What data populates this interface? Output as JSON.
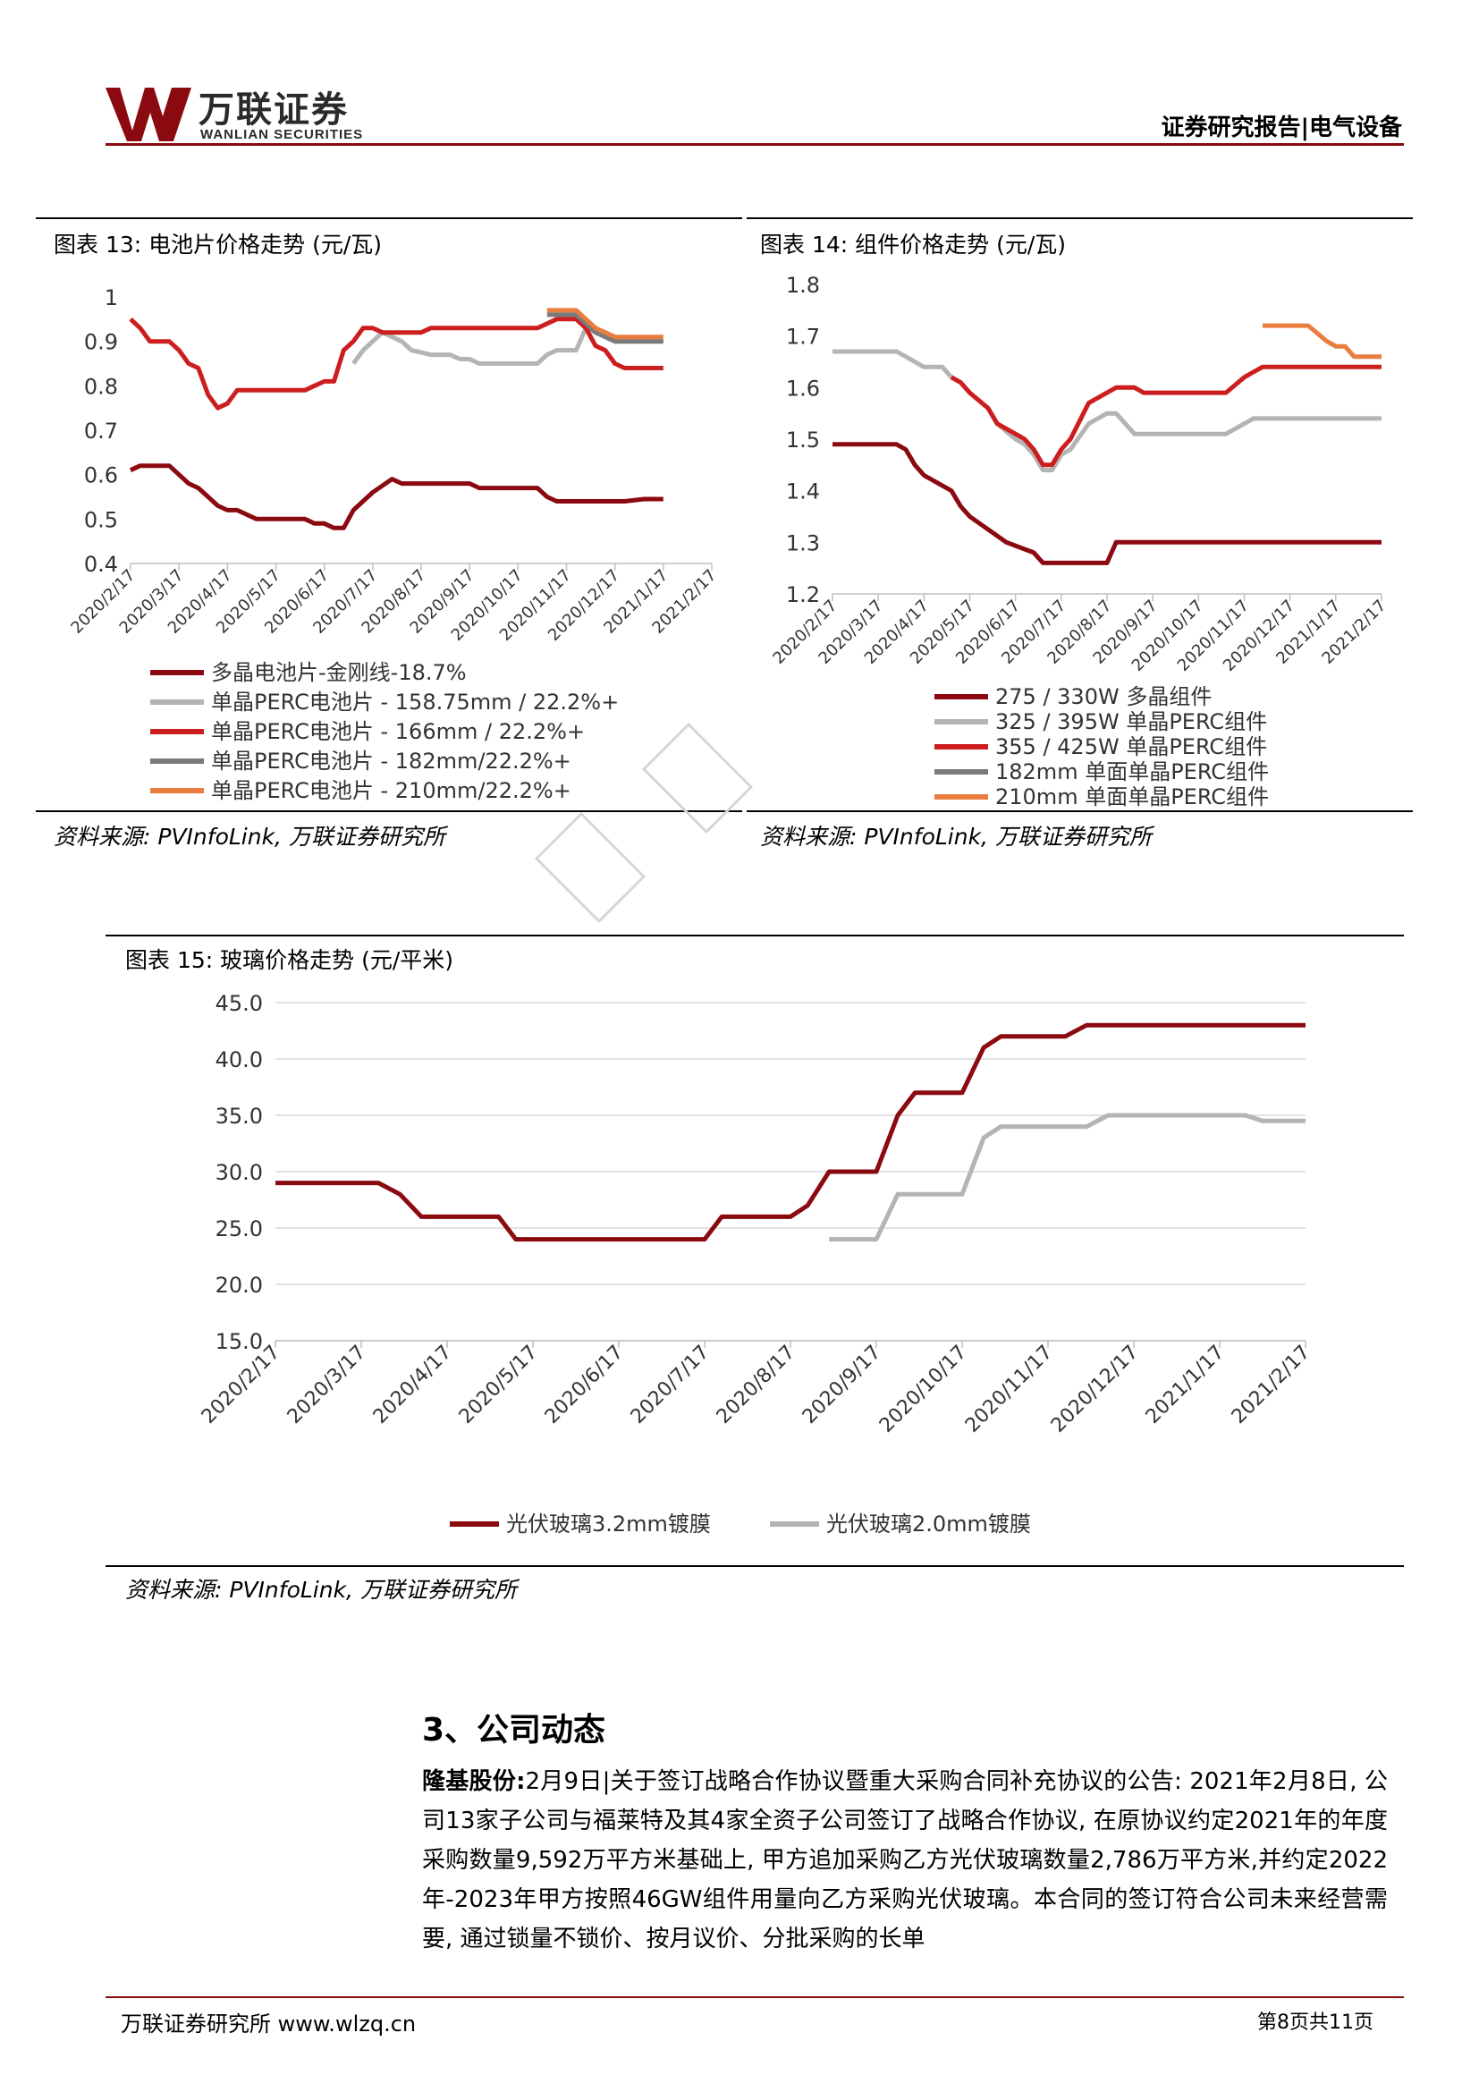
{
  "header": {
    "logo_cn": "万联证券",
    "logo_en": "WANLIAN SECURITIES",
    "report_type": "证券研究报告|电气设备",
    "brand_color": "#8b0a10"
  },
  "figures": {
    "f13": {
      "title": "图表 13: 电池片价格走势 (元/瓦)",
      "source": "资料来源: PVInfoLink, 万联证券研究所"
    },
    "f14": {
      "title": "图表 14: 组件价格走势 (元/瓦)",
      "source": "资料来源: PVInfoLink, 万联证券研究所"
    },
    "f15": {
      "title": "图表 15: 玻璃价格走势 (元/平米)",
      "source": "资料来源: PVInfoLink, 万联证券研究所"
    }
  },
  "chart_data": [
    {
      "type": "line",
      "x": [
        "2020/2/17",
        "2020/3/17",
        "2020/4/17",
        "2020/5/17",
        "2020/6/17",
        "2020/7/17",
        "2020/8/17",
        "2020/9/17",
        "2020/10/17",
        "2020/11/17",
        "2020/12/17",
        "2021/1/17",
        "2021/2/17"
      ],
      "ylim": [
        0.4,
        1.0
      ],
      "yticks": [
        "0.4",
        "0.5",
        "0.6",
        "0.7",
        "0.8",
        "0.9",
        "1"
      ],
      "series": [
        {
          "name": "多晶电池片-金刚线-18.7%",
          "color": "#8b0a10",
          "points": [
            [
              0,
              0.61
            ],
            [
              0.2,
              0.62
            ],
            [
              0.8,
              0.62
            ],
            [
              1.0,
              0.6
            ],
            [
              1.2,
              0.58
            ],
            [
              1.4,
              0.57
            ],
            [
              1.6,
              0.55
            ],
            [
              1.8,
              0.53
            ],
            [
              2.0,
              0.52
            ],
            [
              2.2,
              0.52
            ],
            [
              2.6,
              0.5
            ],
            [
              3.0,
              0.5
            ],
            [
              3.6,
              0.5
            ],
            [
              3.8,
              0.49
            ],
            [
              4.0,
              0.49
            ],
            [
              4.2,
              0.48
            ],
            [
              4.4,
              0.48
            ],
            [
              4.6,
              0.52
            ],
            [
              5.0,
              0.56
            ],
            [
              5.4,
              0.59
            ],
            [
              5.6,
              0.58
            ],
            [
              7.0,
              0.58
            ],
            [
              7.2,
              0.57
            ],
            [
              8.4,
              0.57
            ],
            [
              8.6,
              0.55
            ],
            [
              8.8,
              0.54
            ],
            [
              10.2,
              0.54
            ],
            [
              10.6,
              0.545
            ],
            [
              11,
              0.545
            ]
          ]
        },
        {
          "name": "单晶PERC电池片 - 158.75mm / 22.2%+",
          "color": "#b4b4b4",
          "points": [
            [
              4.6,
              0.85
            ],
            [
              4.8,
              0.88
            ],
            [
              5.2,
              0.92
            ],
            [
              5.6,
              0.9
            ],
            [
              5.8,
              0.88
            ],
            [
              6.2,
              0.87
            ],
            [
              6.6,
              0.87
            ],
            [
              6.8,
              0.86
            ],
            [
              7.0,
              0.86
            ],
            [
              7.2,
              0.85
            ],
            [
              8.4,
              0.85
            ],
            [
              8.6,
              0.87
            ],
            [
              8.8,
              0.88
            ],
            [
              9.2,
              0.88
            ],
            [
              9.4,
              0.93
            ],
            [
              9.6,
              0.92
            ],
            [
              10,
              0.9
            ],
            [
              11,
              0.9
            ]
          ]
        },
        {
          "name": "单晶PERC电池片 - 166mm / 22.2%+",
          "color": "#cc1e1e",
          "points": [
            [
              0,
              0.95
            ],
            [
              0.2,
              0.93
            ],
            [
              0.4,
              0.9
            ],
            [
              0.8,
              0.9
            ],
            [
              1.0,
              0.88
            ],
            [
              1.2,
              0.85
            ],
            [
              1.4,
              0.84
            ],
            [
              1.6,
              0.78
            ],
            [
              1.8,
              0.75
            ],
            [
              2.0,
              0.76
            ],
            [
              2.2,
              0.79
            ],
            [
              3.6,
              0.79
            ],
            [
              3.8,
              0.8
            ],
            [
              4.0,
              0.81
            ],
            [
              4.2,
              0.81
            ],
            [
              4.4,
              0.88
            ],
            [
              4.6,
              0.9
            ],
            [
              4.8,
              0.93
            ],
            [
              5.0,
              0.93
            ],
            [
              5.2,
              0.92
            ],
            [
              6.0,
              0.92
            ],
            [
              6.2,
              0.93
            ],
            [
              8.4,
              0.93
            ],
            [
              8.8,
              0.95
            ],
            [
              9.2,
              0.95
            ],
            [
              9.4,
              0.93
            ],
            [
              9.6,
              0.89
            ],
            [
              9.8,
              0.88
            ],
            [
              10.0,
              0.85
            ],
            [
              10.2,
              0.84
            ],
            [
              11,
              0.84
            ]
          ]
        },
        {
          "name": "单晶PERC电池片 - 182mm/22.2%+",
          "color": "#7a7a7a",
          "points": [
            [
              8.6,
              0.96
            ],
            [
              9.2,
              0.96
            ],
            [
              9.4,
              0.94
            ],
            [
              9.6,
              0.92
            ],
            [
              10,
              0.9
            ],
            [
              11,
              0.9
            ]
          ]
        },
        {
          "name": "单晶PERC电池片 - 210mm/22.2%+",
          "color": "#e87d3e",
          "points": [
            [
              8.6,
              0.97
            ],
            [
              9.2,
              0.97
            ],
            [
              9.4,
              0.95
            ],
            [
              9.6,
              0.93
            ],
            [
              10,
              0.91
            ],
            [
              11,
              0.91
            ]
          ]
        }
      ]
    },
    {
      "type": "line",
      "x": [
        "2020/2/17",
        "2020/3/17",
        "2020/4/17",
        "2020/5/17",
        "2020/6/17",
        "2020/7/17",
        "2020/8/17",
        "2020/9/17",
        "2020/10/17",
        "2020/11/17",
        "2020/12/17",
        "2021/1/17",
        "2021/2/17"
      ],
      "ylim": [
        1.2,
        1.8
      ],
      "yticks": [
        "1.2",
        "1.3",
        "1.4",
        "1.5",
        "1.6",
        "1.7",
        "1.8"
      ],
      "series": [
        {
          "name": "275 / 330W 多晶组件",
          "color": "#8b0a10",
          "points": [
            [
              0,
              1.49
            ],
            [
              1.4,
              1.49
            ],
            [
              1.6,
              1.48
            ],
            [
              1.8,
              1.45
            ],
            [
              2.0,
              1.43
            ],
            [
              2.4,
              1.41
            ],
            [
              2.6,
              1.4
            ],
            [
              2.8,
              1.37
            ],
            [
              3.0,
              1.35
            ],
            [
              3.8,
              1.3
            ],
            [
              4.4,
              1.28
            ],
            [
              4.6,
              1.26
            ],
            [
              6.0,
              1.26
            ],
            [
              6.2,
              1.3
            ],
            [
              12,
              1.3
            ]
          ]
        },
        {
          "name": "325 / 395W 单晶PERC组件",
          "color": "#b4b4b4",
          "points": [
            [
              0,
              1.67
            ],
            [
              1.4,
              1.67
            ],
            [
              1.6,
              1.66
            ],
            [
              1.8,
              1.65
            ],
            [
              2.0,
              1.64
            ],
            [
              2.4,
              1.64
            ],
            [
              2.6,
              1.62
            ],
            [
              2.8,
              1.61
            ],
            [
              3.0,
              1.59
            ],
            [
              3.4,
              1.56
            ],
            [
              3.6,
              1.53
            ],
            [
              4.0,
              1.5
            ],
            [
              4.2,
              1.49
            ],
            [
              4.4,
              1.47
            ],
            [
              4.6,
              1.44
            ],
            [
              4.8,
              1.44
            ],
            [
              5.0,
              1.47
            ],
            [
              5.2,
              1.48
            ],
            [
              5.6,
              1.53
            ],
            [
              6.0,
              1.55
            ],
            [
              6.2,
              1.55
            ],
            [
              6.6,
              1.51
            ],
            [
              8.6,
              1.51
            ],
            [
              8.8,
              1.52
            ],
            [
              9.2,
              1.54
            ],
            [
              12,
              1.54
            ]
          ]
        },
        {
          "name": "355 / 425W 单晶PERC组件",
          "color": "#cc1e1e",
          "points": [
            [
              2.6,
              1.62
            ],
            [
              2.8,
              1.61
            ],
            [
              3.0,
              1.59
            ],
            [
              3.4,
              1.56
            ],
            [
              3.6,
              1.53
            ],
            [
              4.0,
              1.51
            ],
            [
              4.2,
              1.5
            ],
            [
              4.4,
              1.48
            ],
            [
              4.6,
              1.45
            ],
            [
              4.8,
              1.45
            ],
            [
              5.0,
              1.48
            ],
            [
              5.2,
              1.5
            ],
            [
              5.6,
              1.57
            ],
            [
              6.0,
              1.59
            ],
            [
              6.2,
              1.6
            ],
            [
              6.6,
              1.6
            ],
            [
              6.8,
              1.59
            ],
            [
              8.6,
              1.59
            ],
            [
              9.0,
              1.62
            ],
            [
              9.2,
              1.63
            ],
            [
              9.4,
              1.64
            ],
            [
              12,
              1.64
            ]
          ]
        },
        {
          "name": "182mm 单面单晶PERC组件",
          "color": "#7a7a7a",
          "points": []
        },
        {
          "name": "210mm 单面单晶PERC组件",
          "color": "#e87d3e",
          "points": [
            [
              9.4,
              1.72
            ],
            [
              10.4,
              1.72
            ],
            [
              10.8,
              1.69
            ],
            [
              11.0,
              1.68
            ],
            [
              11.2,
              1.68
            ],
            [
              11.4,
              1.66
            ],
            [
              12,
              1.66
            ]
          ]
        }
      ]
    },
    {
      "type": "line",
      "x": [
        "2020/2/17",
        "2020/3/17",
        "2020/4/17",
        "2020/5/17",
        "2020/6/17",
        "2020/7/17",
        "2020/8/17",
        "2020/9/17",
        "2020/10/17",
        "2020/11/17",
        "2020/12/17",
        "2021/1/17",
        "2021/2/17"
      ],
      "ylim": [
        15,
        45
      ],
      "yticks": [
        "15.0",
        "20.0",
        "25.0",
        "30.0",
        "35.0",
        "40.0",
        "45.0"
      ],
      "series": [
        {
          "name": "光伏玻璃3.2mm镀膜",
          "color": "#8b0a10",
          "points": [
            [
              0,
              29
            ],
            [
              1.2,
              29
            ],
            [
              1.45,
              28
            ],
            [
              1.7,
              26
            ],
            [
              2.6,
              26
            ],
            [
              2.8,
              24
            ],
            [
              5.0,
              24
            ],
            [
              5.2,
              26
            ],
            [
              6.0,
              26
            ],
            [
              6.2,
              27
            ],
            [
              6.45,
              30
            ],
            [
              7.0,
              30
            ],
            [
              7.25,
              35
            ],
            [
              7.45,
              37
            ],
            [
              8.0,
              37
            ],
            [
              8.25,
              41
            ],
            [
              8.45,
              42
            ],
            [
              9.2,
              42
            ],
            [
              9.45,
              43
            ],
            [
              12,
              43
            ]
          ]
        },
        {
          "name": "光伏玻璃2.0mm镀膜",
          "color": "#b4b4b4",
          "points": [
            [
              6.45,
              24
            ],
            [
              7.0,
              24
            ],
            [
              7.25,
              28
            ],
            [
              8.0,
              28
            ],
            [
              8.25,
              33
            ],
            [
              8.45,
              34
            ],
            [
              9.45,
              34
            ],
            [
              9.7,
              35
            ],
            [
              11.3,
              35
            ],
            [
              11.5,
              34.5
            ],
            [
              12,
              34.5
            ]
          ]
        }
      ]
    }
  ],
  "section": {
    "title": "3、公司动态",
    "company": "隆基股份:",
    "paragraph": "2月9日|关于签订战略合作协议暨重大采购合同补充协议的公告: 2021年2月8日, 公司13家子公司与福莱特及其4家全资子公司签订了战略合作协议, 在原协议约定2021年的年度采购数量9,592万平方米基础上, 甲方追加采购乙方光伏玻璃数量2,786万平方米,并约定2022年-2023年甲方按照46GW组件用量向乙方采购光伏玻璃。本合同的签订符合公司未来经营需要, 通过锁量不锁价、按月议价、分批采购的长单"
  },
  "footer": {
    "left": "万联证券研究所 www.wlzq.cn",
    "right": "第8页共11页"
  }
}
